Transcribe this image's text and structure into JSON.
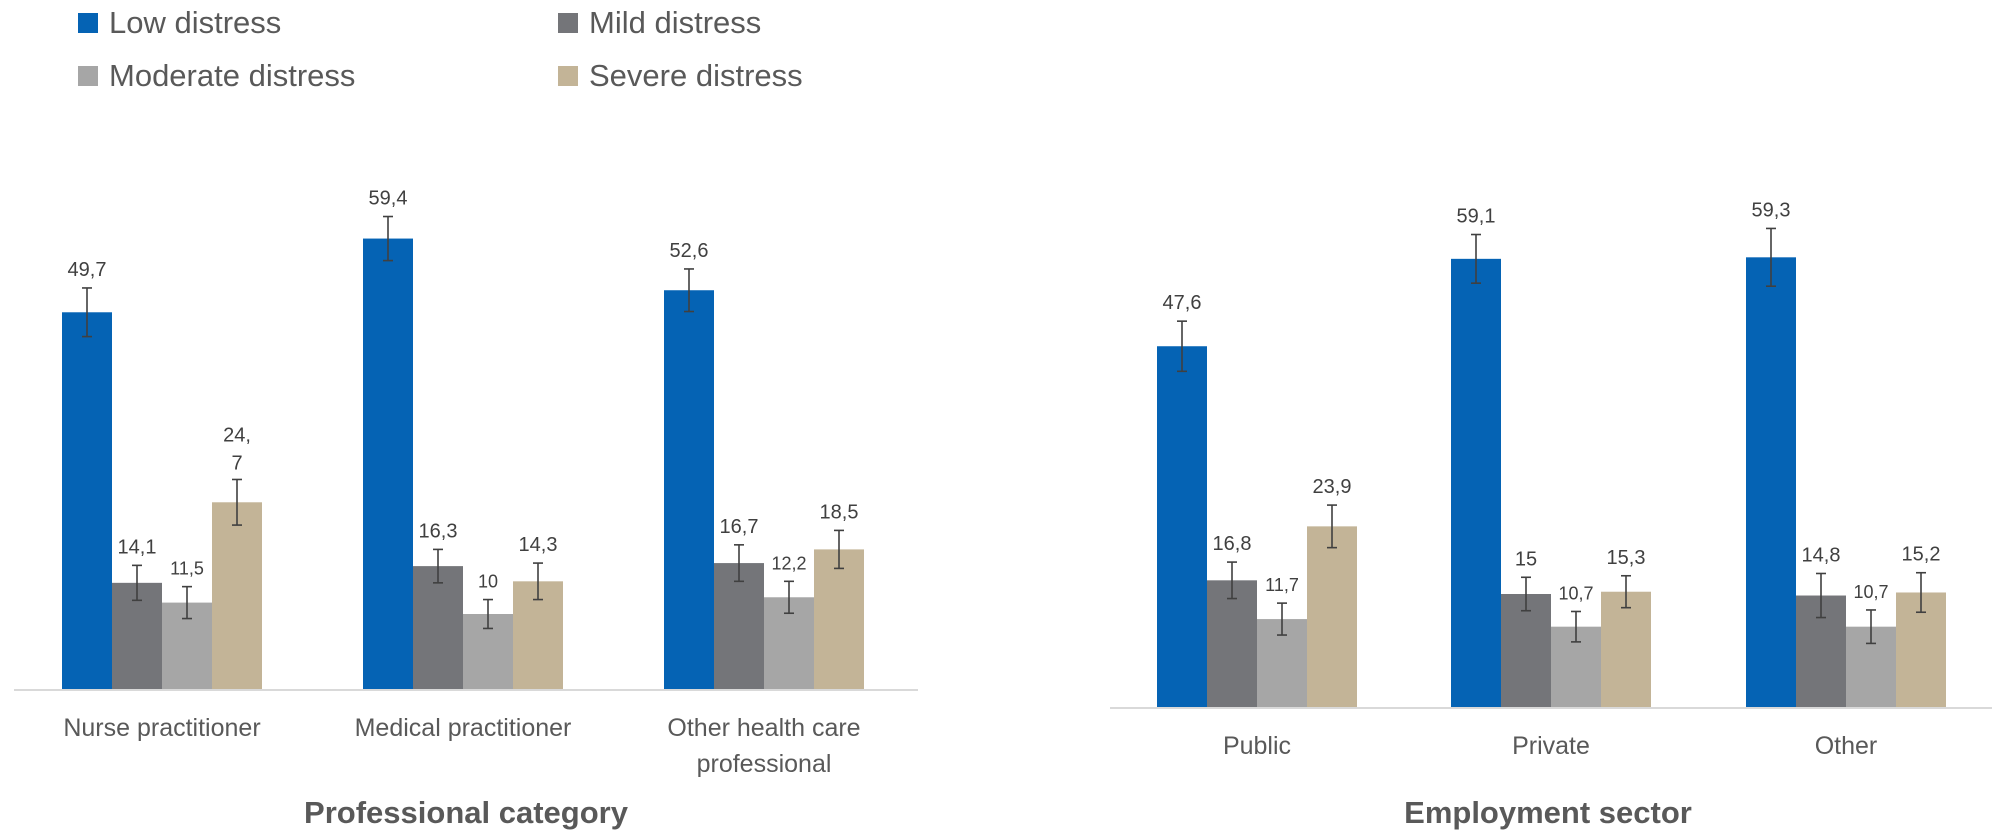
{
  "legend": [
    {
      "label": "Low distress",
      "color": "#0563B4"
    },
    {
      "label": "Mild distress",
      "color": "#747579"
    },
    {
      "label": "Moderate distress",
      "color": "#A6A6A6"
    },
    {
      "label": "Severe distress",
      "color": "#C3B497"
    }
  ],
  "chart_data": [
    {
      "type": "bar",
      "title": "",
      "xlabel": "Professional category",
      "ylabel": "",
      "categories": [
        "Nurse practitioner",
        "Medical practitioner",
        "Other health care professional"
      ],
      "category_lines": [
        [
          "Nurse practitioner"
        ],
        [
          "Medical practitioner"
        ],
        [
          "Other health care",
          "professional"
        ]
      ],
      "ylim": [
        0,
        70
      ],
      "grid": false,
      "error_bars": true,
      "series": [
        {
          "name": "Low distress",
          "values": [
            49.7,
            59.4,
            52.6
          ],
          "labels": [
            "49,7",
            "59,4",
            "52,6"
          ],
          "errors": [
            3.2,
            2.9,
            2.8
          ]
        },
        {
          "name": "Mild distress",
          "values": [
            14.1,
            16.3,
            16.7
          ],
          "labels": [
            "14,1",
            "16,3",
            "16,7"
          ],
          "errors": [
            2.3,
            2.2,
            2.4
          ]
        },
        {
          "name": "Moderate distress",
          "values": [
            11.5,
            10,
            12.2
          ],
          "labels": [
            "11,5",
            "10",
            "12,2"
          ],
          "errors": [
            2.1,
            1.9,
            2.1
          ]
        },
        {
          "name": "Severe distress",
          "values": [
            24.7,
            14.3,
            18.5
          ],
          "labels": [
            "24,\n7",
            "14,3",
            "18,5"
          ],
          "errors": [
            3.0,
            2.4,
            2.5
          ]
        }
      ]
    },
    {
      "type": "bar",
      "title": "",
      "xlabel": "Employment sector",
      "ylabel": "",
      "categories": [
        "Public",
        "Private",
        "Other"
      ],
      "category_lines": [
        [
          "Public"
        ],
        [
          "Private"
        ],
        [
          "Other"
        ]
      ],
      "ylim": [
        0,
        70
      ],
      "grid": false,
      "error_bars": true,
      "series": [
        {
          "name": "Low distress",
          "values": [
            47.6,
            59.1,
            59.3
          ],
          "labels": [
            "47,6",
            "59,1",
            "59,3"
          ],
          "errors": [
            3.3,
            3.2,
            3.8
          ]
        },
        {
          "name": "Mild distress",
          "values": [
            16.8,
            15,
            14.8
          ],
          "labels": [
            "16,8",
            "15",
            "14,8"
          ],
          "errors": [
            2.4,
            2.2,
            2.9
          ]
        },
        {
          "name": "Moderate distress",
          "values": [
            11.7,
            10.7,
            10.7
          ],
          "labels": [
            "11,7",
            "10,7",
            "10,7"
          ],
          "errors": [
            2.1,
            2.0,
            2.2
          ]
        },
        {
          "name": "Severe distress",
          "values": [
            23.9,
            15.3,
            15.2
          ],
          "labels": [
            "23,9",
            "15,3",
            "15,2"
          ],
          "errors": [
            2.8,
            2.1,
            2.6
          ]
        }
      ]
    }
  ]
}
